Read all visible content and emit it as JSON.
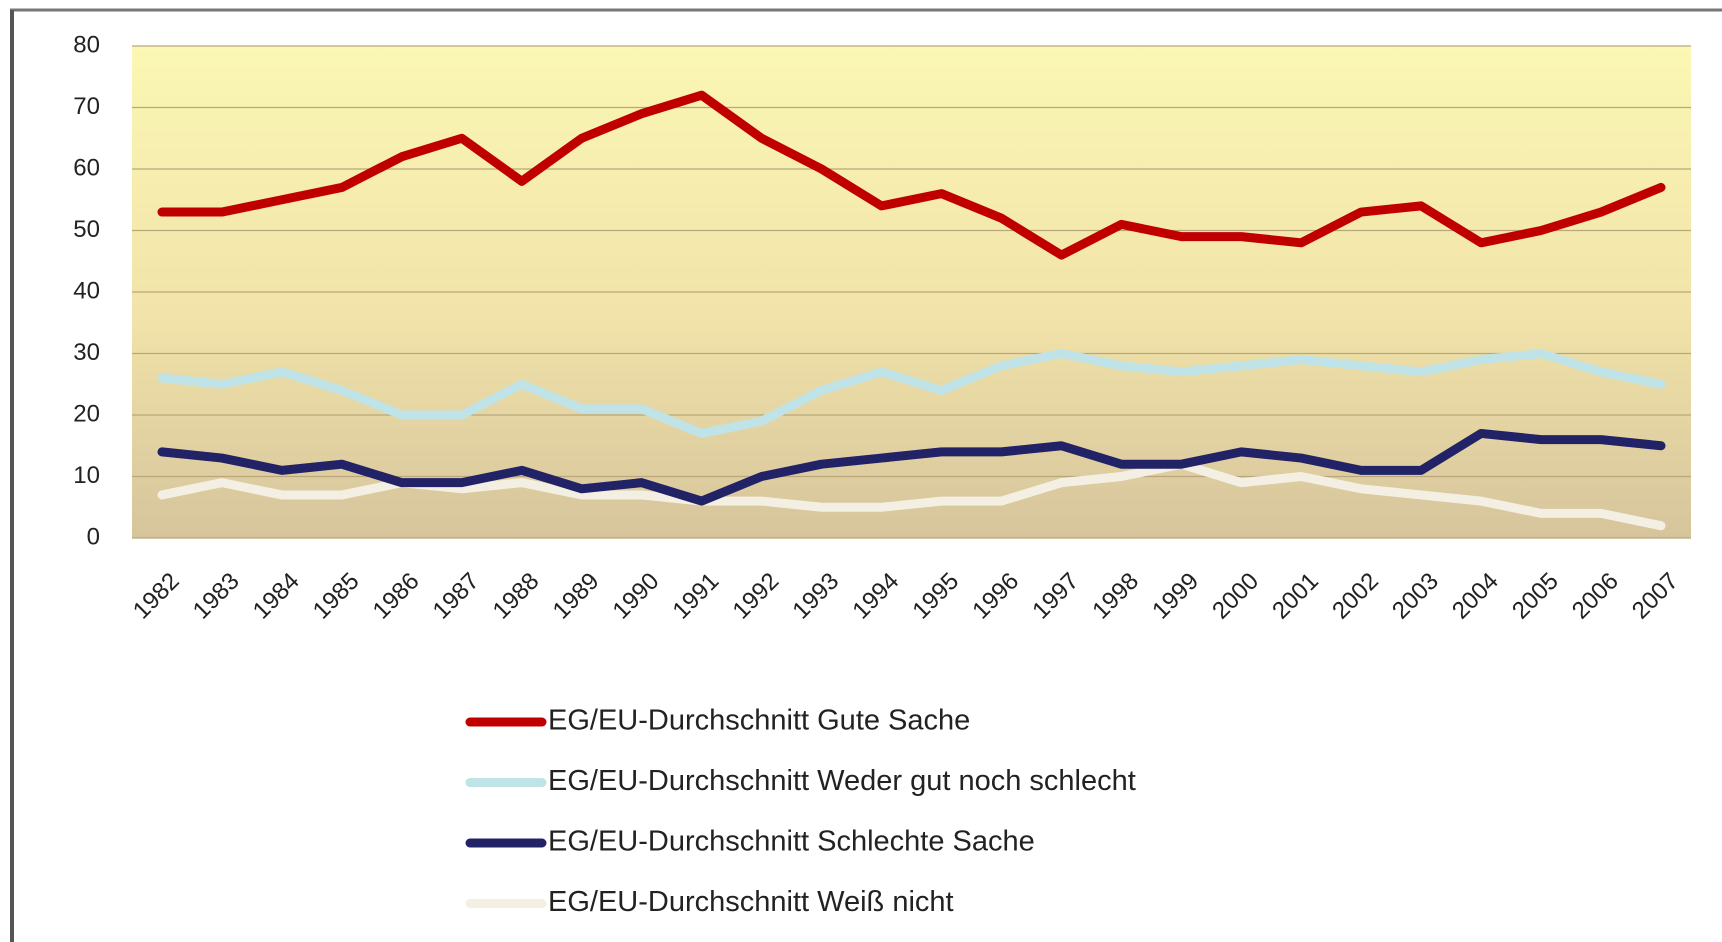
{
  "chart_data": {
    "type": "line",
    "x": [
      1982,
      1983,
      1984,
      1985,
      1986,
      1987,
      1988,
      1989,
      1990,
      1991,
      1992,
      1993,
      1994,
      1995,
      1996,
      1997,
      1998,
      1999,
      2000,
      2001,
      2002,
      2003,
      2004,
      2005,
      2006,
      2007
    ],
    "xlim": [
      1981.5,
      2007.5
    ],
    "ylim": [
      0,
      80
    ],
    "yticks": [
      0,
      10,
      20,
      30,
      40,
      50,
      60,
      70,
      80
    ],
    "grid": true,
    "legend": "bottom",
    "series": [
      {
        "name": "EG/EU-Durchschnitt Gute Sache",
        "color": "#c00000",
        "values": [
          53,
          53,
          55,
          57,
          62,
          65,
          58,
          65,
          69,
          72,
          65,
          60,
          54,
          56,
          52,
          46,
          51,
          49,
          49,
          48,
          53,
          54,
          48,
          50,
          53,
          57
        ]
      },
      {
        "name": "EG/EU-Durchschnitt Weder gut noch schlecht",
        "color": "#bfe3e6",
        "values": [
          26,
          25,
          27,
          24,
          20,
          20,
          25,
          21,
          21,
          17,
          19,
          24,
          27,
          24,
          28,
          30,
          28,
          27,
          28,
          29,
          28,
          27,
          29,
          30,
          27,
          25
        ]
      },
      {
        "name": "EG/EU-Durchschnitt Schlechte Sache",
        "color": "#222266",
        "values": [
          14,
          13,
          11,
          12,
          9,
          9,
          11,
          8,
          9,
          6,
          10,
          12,
          13,
          14,
          14,
          15,
          12,
          12,
          14,
          13,
          11,
          11,
          17,
          16,
          16,
          15
        ]
      },
      {
        "name": "EG/EU-Durchschnitt Weiß nicht",
        "color": "#f3efe2",
        "values": [
          7,
          9,
          7,
          7,
          9,
          8,
          9,
          7,
          7,
          6,
          6,
          5,
          5,
          6,
          6,
          9,
          10,
          12,
          9,
          10,
          8,
          7,
          6,
          4,
          4,
          2
        ]
      }
    ]
  }
}
